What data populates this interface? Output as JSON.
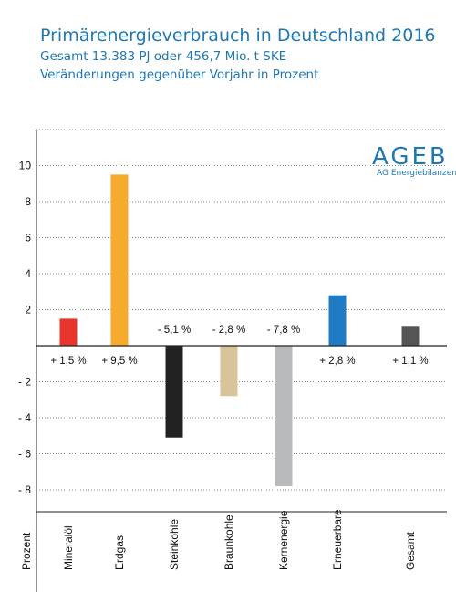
{
  "header": {
    "title": "Primärenergieverbrauch in Deutschland 2016",
    "subtitle1": "Gesamt 13.383 PJ oder 456,7 Mio. t SKE",
    "subtitle2": "Veränderungen gegenüber Vorjahr in Prozent"
  },
  "logo": {
    "main": "AGEB",
    "sub": "AG Energiebilanzen e.V."
  },
  "chart_data": {
    "type": "bar",
    "title": "Primärenergieverbrauch in Deutschland 2016",
    "xlabel": "Prozent",
    "ylabel": "",
    "ylim": [
      -8,
      12
    ],
    "grid": "horizontal dotted",
    "yticks": [
      -8,
      -6,
      -4,
      -2,
      2,
      4,
      6,
      8,
      10
    ],
    "ytick_labels": [
      "- 8",
      "- 6",
      "- 4",
      "- 2",
      "2",
      "4",
      "6",
      "8",
      "10"
    ],
    "categories": [
      "Mineralöl",
      "Erdgas",
      "Steinkohle",
      "Braunkohle",
      "Kernenergie",
      "Erneuerbare",
      "Gesamt"
    ],
    "values": [
      1.5,
      9.5,
      -5.1,
      -2.8,
      -7.8,
      2.8,
      1.1
    ],
    "data_labels": [
      "+ 1,5 %",
      "+ 9,5 %",
      "- 5,1 %",
      "- 2,8 %",
      "- 7,8 %",
      "+ 2,8 %",
      "+ 1,1 %"
    ],
    "colors": [
      "#e8352b",
      "#f7ab2e",
      "#222222",
      "#d9c39b",
      "#b9babd",
      "#1f7bc4",
      "#555555"
    ]
  }
}
